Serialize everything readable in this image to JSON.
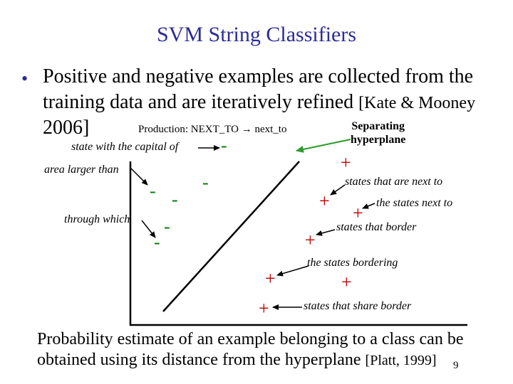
{
  "title": "SVM String Classifiers",
  "bullet": {
    "symbol": "•",
    "line1": "Positive and negative examples are collected from the",
    "line2_text": "training data and are iteratively refined ",
    "line2_cite": "[Kate & Mooney",
    "line3": "2006]"
  },
  "production": {
    "prefix": "Production: NEXT_TO",
    "arrow": "→",
    "suffix": "next_to"
  },
  "separating_label": {
    "line1": "Separating",
    "line2": "hyperplane"
  },
  "negative_examples": [
    "state with the capital of",
    "area larger than",
    "through which"
  ],
  "positive_examples": [
    "states that are next to",
    "the states next to",
    "states that border",
    "the states bordering",
    "states that share border"
  ],
  "marks": {
    "negative": "-",
    "positive": "+"
  },
  "footer": {
    "line1": "Probability estimate of an example belonging to a class can be",
    "line2_text": "obtained using its distance from the hyperplane ",
    "line2_cite": "[Platt, 1999]"
  },
  "page_number": "9",
  "colors": {
    "title": "#2c2c96",
    "separating_arrow": "#2e9a2e",
    "axes": "#000000"
  }
}
